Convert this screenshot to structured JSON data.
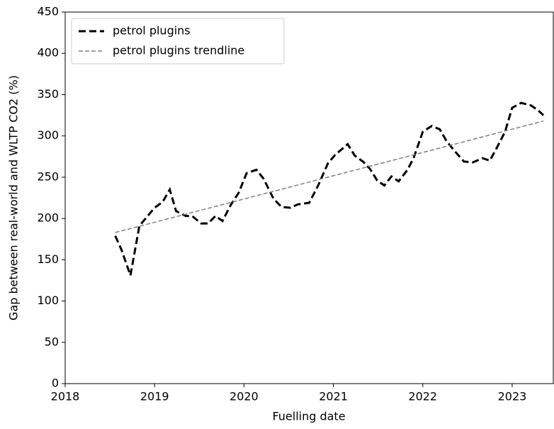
{
  "chart_data": {
    "type": "line",
    "xlabel": "Fuelling date",
    "ylabel": "Gap between real-world and WLTP CO2 (%)",
    "xlim": [
      2018,
      2023.46
    ],
    "xticks": [
      2018,
      2019,
      2020,
      2021,
      2022,
      2023
    ],
    "ylim": [
      0,
      450
    ],
    "yticks": [
      0,
      50,
      100,
      150,
      200,
      250,
      300,
      350,
      400,
      450
    ],
    "legend": "upper left",
    "series": [
      {
        "name": "petrol plugins",
        "color": "#000000",
        "dash": "dashed-thick",
        "x": [
          2018.56,
          2018.63,
          2018.73,
          2018.83,
          2019.0,
          2019.09,
          2019.17,
          2019.24,
          2019.35,
          2019.42,
          2019.52,
          2019.6,
          2019.68,
          2019.76,
          2019.85,
          2019.94,
          2020.03,
          2020.14,
          2020.22,
          2020.33,
          2020.42,
          2020.52,
          2020.6,
          2020.73,
          2020.83,
          2020.94,
          2021.02,
          2021.16,
          2021.24,
          2021.33,
          2021.41,
          2021.49,
          2021.57,
          2021.65,
          2021.73,
          2021.83,
          2021.9,
          2022.0,
          2022.1,
          2022.19,
          2022.27,
          2022.37,
          2022.46,
          2022.56,
          2022.67,
          2022.75,
          2022.83,
          2022.92,
          2023.0,
          2023.1,
          2023.21,
          2023.29,
          2023.35
        ],
        "values": [
          179,
          162,
          131,
          191,
          213,
          220,
          235,
          209,
          203,
          203,
          194,
          194,
          203,
          197,
          216,
          231,
          255,
          259,
          248,
          224,
          214,
          213,
          217,
          219,
          240,
          267,
          277,
          290,
          276,
          269,
          260,
          246,
          240,
          251,
          245,
          259,
          274,
          305,
          312,
          308,
          293,
          280,
          269,
          268,
          273,
          270,
          286,
          305,
          334,
          340,
          337,
          331,
          325
        ]
      },
      {
        "name": "petrol plugins trendline",
        "color": "#808080",
        "dash": "dashed-thin",
        "x": [
          2018.56,
          2023.35
        ],
        "values": [
          183,
          318
        ]
      }
    ]
  }
}
